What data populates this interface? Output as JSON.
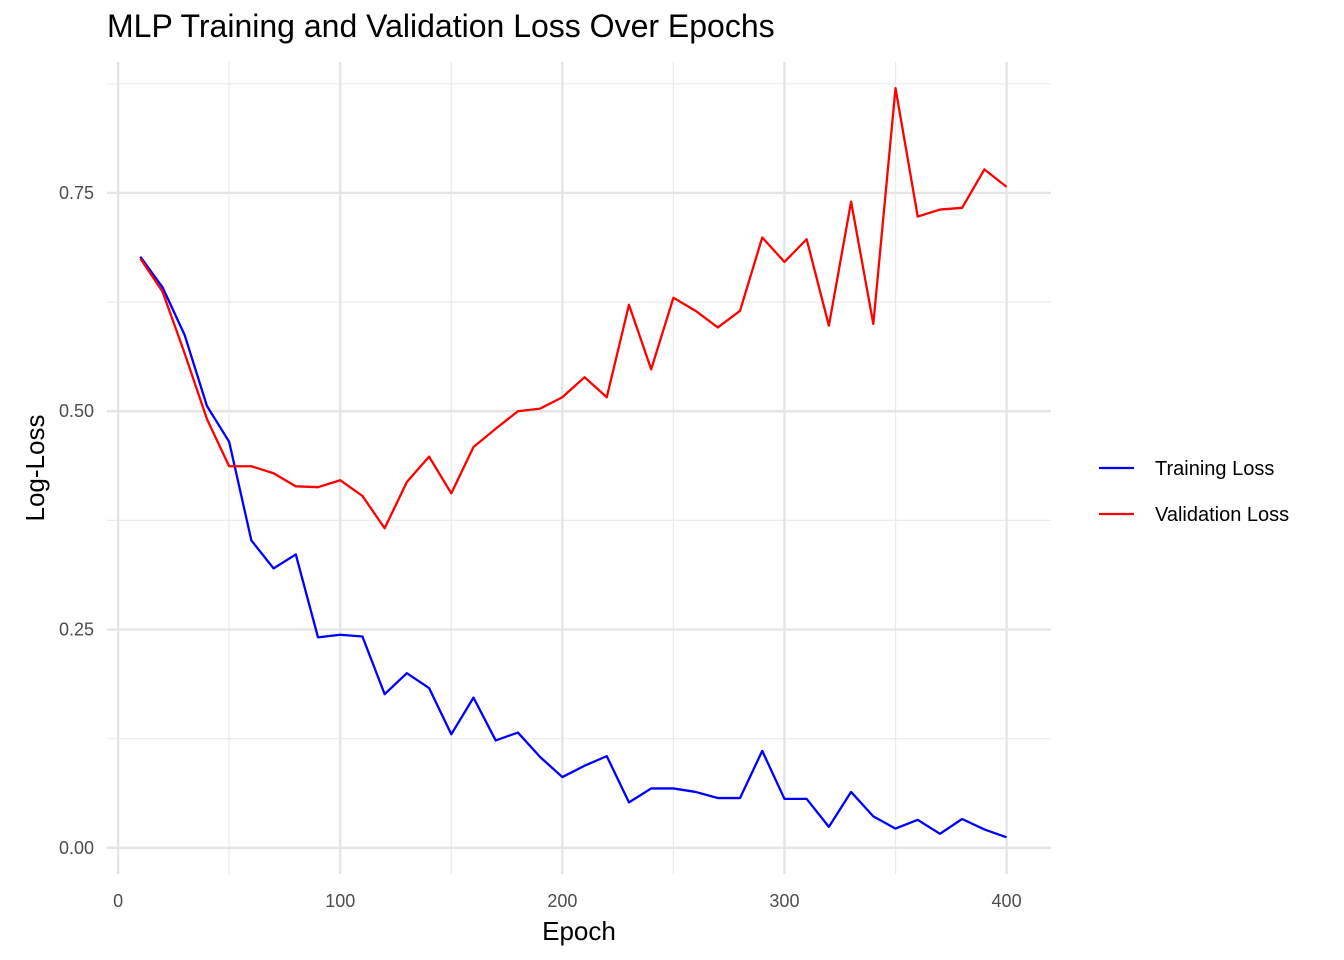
{
  "chart_data": {
    "type": "line",
    "title": "MLP Training and Validation Loss Over Epochs",
    "xlabel": "Epoch",
    "ylabel": "Log-Loss",
    "xlim": [
      -5,
      420
    ],
    "ylim": [
      -0.03,
      0.9
    ],
    "x_ticks": [
      0,
      100,
      200,
      300,
      400
    ],
    "x_tick_labels": [
      "0",
      "100",
      "200",
      "300",
      "400"
    ],
    "y_ticks": [
      0.0,
      0.25,
      0.5,
      0.75
    ],
    "y_tick_labels": [
      "0.00",
      "0.25",
      "0.50",
      "0.75"
    ],
    "x_minor_ticks": [
      50,
      150,
      250,
      350
    ],
    "y_minor_ticks": [
      0.125,
      0.375,
      0.625,
      0.875
    ],
    "grid": true,
    "legend_position": "right",
    "x": [
      10,
      20,
      30,
      40,
      50,
      60,
      70,
      80,
      90,
      100,
      110,
      120,
      130,
      140,
      150,
      160,
      170,
      180,
      190,
      200,
      210,
      220,
      230,
      240,
      250,
      260,
      270,
      280,
      290,
      300,
      310,
      320,
      330,
      340,
      350,
      360,
      370,
      380,
      390,
      400
    ],
    "series": [
      {
        "name": "Training Loss",
        "color": "#0000ff",
        "values": [
          0.677,
          0.642,
          0.587,
          0.506,
          0.465,
          0.352,
          0.32,
          0.336,
          0.241,
          0.244,
          0.242,
          0.176,
          0.2,
          0.183,
          0.13,
          0.172,
          0.123,
          0.132,
          0.104,
          0.081,
          0.094,
          0.105,
          0.052,
          0.068,
          0.068,
          0.064,
          0.057,
          0.057,
          0.111,
          0.056,
          0.056,
          0.024,
          0.064,
          0.036,
          0.022,
          0.032,
          0.016,
          0.033,
          0.021,
          0.012
        ]
      },
      {
        "name": "Validation Loss",
        "color": "#ff0000",
        "values": [
          0.675,
          0.637,
          0.566,
          0.491,
          0.437,
          0.437,
          0.429,
          0.414,
          0.413,
          0.421,
          0.403,
          0.366,
          0.419,
          0.448,
          0.406,
          0.459,
          0.48,
          0.5,
          0.503,
          0.516,
          0.539,
          0.516,
          0.622,
          0.548,
          0.63,
          0.615,
          0.596,
          0.615,
          0.699,
          0.671,
          0.697,
          0.598,
          0.74,
          0.6,
          0.87,
          0.723,
          0.731,
          0.733,
          0.777,
          0.757
        ]
      }
    ]
  }
}
